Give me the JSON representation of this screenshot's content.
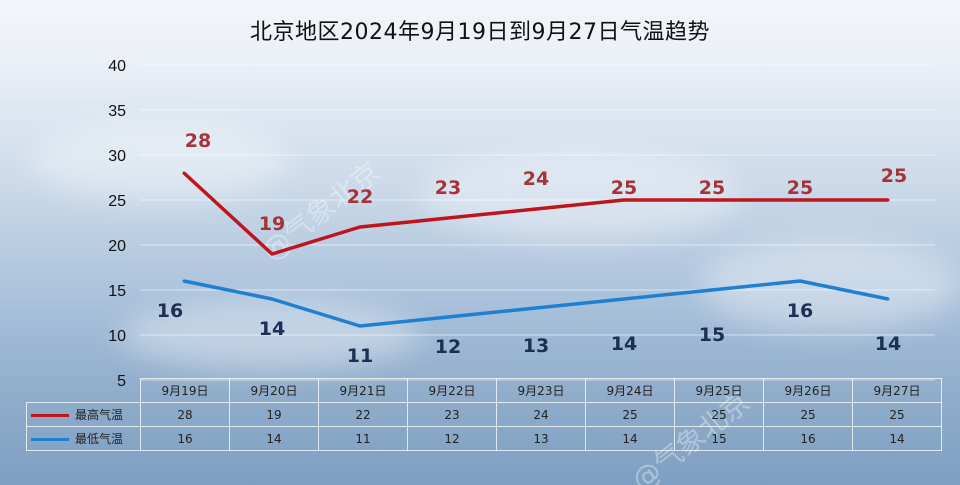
{
  "watermark": "@气象北京",
  "chart_data": {
    "type": "line",
    "title": "北京地区2024年9月19日到9月27日气温趋势",
    "xlabel": "",
    "ylabel": "",
    "categories": [
      "9月19日",
      "9月20日",
      "9月21日",
      "9月22日",
      "9月23日",
      "9月24日",
      "9月25日",
      "9月26日",
      "9月27日"
    ],
    "yticks": [
      5,
      10,
      15,
      20,
      25,
      30,
      35,
      40
    ],
    "ylim": [
      5,
      40
    ],
    "grid": true,
    "legend_placement": "bottom-left data table",
    "series": [
      {
        "name": "最高气温",
        "values": [
          28,
          19,
          22,
          23,
          24,
          25,
          25,
          25,
          25
        ],
        "color": "#c0141c",
        "label_color": "#a4343a"
      },
      {
        "name": "最低气温",
        "values": [
          16,
          14,
          11,
          12,
          13,
          14,
          15,
          16,
          14
        ],
        "color": "#1f7fd0",
        "label_color": "#1c2f55"
      }
    ]
  }
}
